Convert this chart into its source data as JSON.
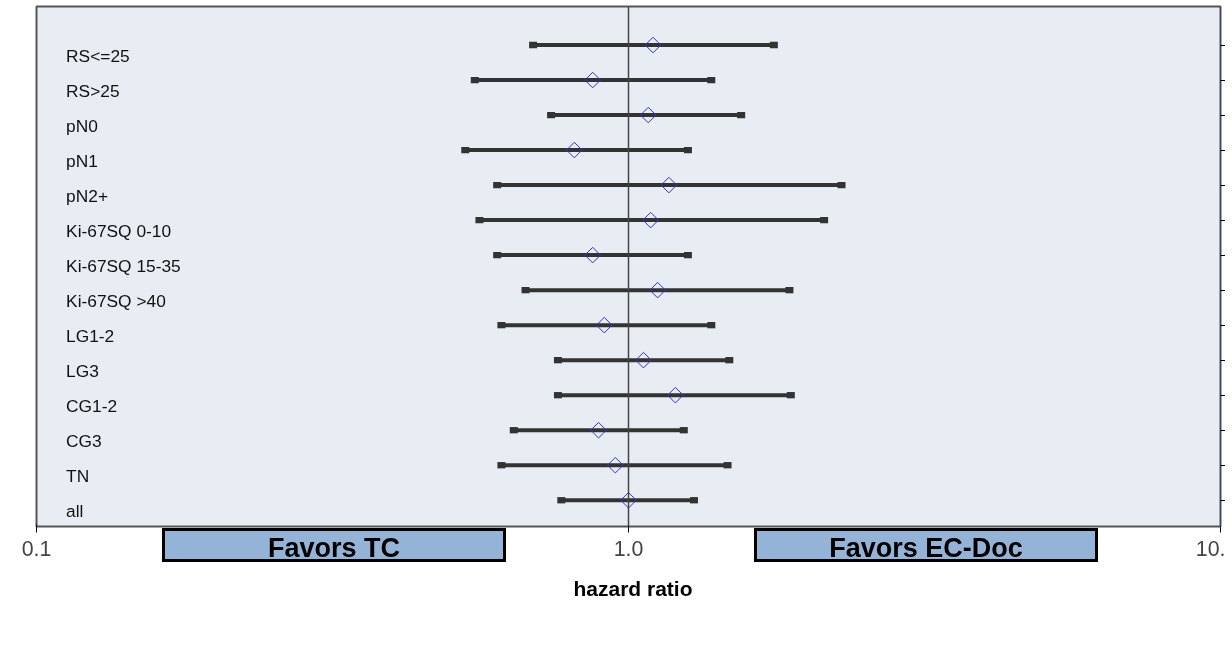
{
  "chart_data": {
    "type": "scatter",
    "orientation": "horizontal",
    "xlabel": "hazard ratio",
    "categories": [
      "RS<=25",
      "RS>25",
      "pN0",
      "pN1",
      "pN2+",
      "Ki-67SQ 0-10",
      "Ki-67SQ 15-35",
      "Ki-67SQ >40",
      "LG1-2",
      "LG3",
      "CG1-2",
      "CG3",
      "TN",
      "all"
    ],
    "values": [
      1.1,
      0.87,
      1.08,
      0.81,
      1.17,
      1.09,
      0.87,
      1.12,
      0.91,
      1.06,
      1.2,
      0.89,
      0.95,
      1.0
    ],
    "errors": [
      [
        0.69,
        1.76
      ],
      [
        0.55,
        1.38
      ],
      [
        0.74,
        1.55
      ],
      [
        0.53,
        1.26
      ],
      [
        0.6,
        2.29
      ],
      [
        0.56,
        2.14
      ],
      [
        0.6,
        1.26
      ],
      [
        0.67,
        1.87
      ],
      [
        0.61,
        1.38
      ],
      [
        0.76,
        1.48
      ],
      [
        0.76,
        1.88
      ],
      [
        0.64,
        1.24
      ],
      [
        0.61,
        1.47
      ],
      [
        0.77,
        1.29
      ]
    ],
    "color": "#3333cc",
    "log": "x",
    "xlim": [
      0.1,
      10
    ],
    "xticks": [
      0.1,
      {
        "value": 1,
        "label": "1.0"
      },
      {
        "value": 10,
        "label": "10."
      }
    ],
    "ref_lines": [
      {
        "axis": "x",
        "value": 1
      }
    ],
    "annotations": [
      "Favors TC",
      "Favors EC-Doc"
    ],
    "marker": "diamond",
    "grid": false
  }
}
